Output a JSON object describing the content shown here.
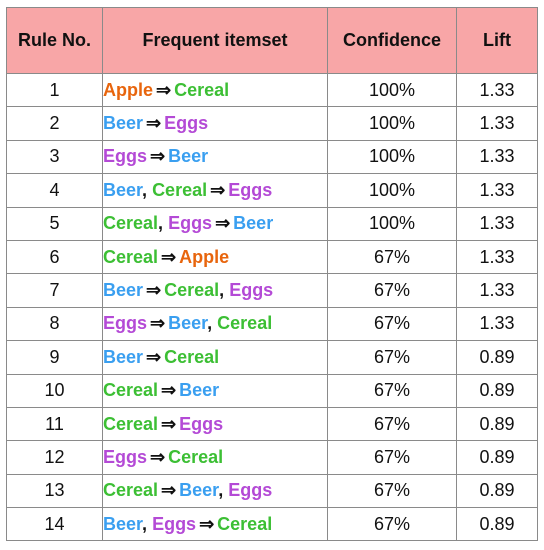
{
  "table": {
    "headers": [
      "Rule No.",
      "Frequent itemset",
      "Confidence",
      "Lift"
    ],
    "arrow": "⇒",
    "colors": {
      "Apple": "#e8650d",
      "Beer": "#3a9ff0",
      "Cereal": "#3cbf34",
      "Eggs": "#b44ad6",
      "header_bg": "#f8a6a7"
    },
    "rows": [
      {
        "num": "1",
        "lhs": [
          "Apple"
        ],
        "rhs": [
          "Cereal"
        ],
        "confidence": "100%",
        "lift": "1.33"
      },
      {
        "num": "2",
        "lhs": [
          "Beer"
        ],
        "rhs": [
          "Eggs"
        ],
        "confidence": "100%",
        "lift": "1.33"
      },
      {
        "num": "3",
        "lhs": [
          "Eggs"
        ],
        "rhs": [
          "Beer"
        ],
        "confidence": "100%",
        "lift": "1.33"
      },
      {
        "num": "4",
        "lhs": [
          "Beer",
          "Cereal"
        ],
        "rhs": [
          "Eggs"
        ],
        "confidence": "100%",
        "lift": "1.33"
      },
      {
        "num": "5",
        "lhs": [
          "Cereal",
          "Eggs"
        ],
        "rhs": [
          "Beer"
        ],
        "confidence": "100%",
        "lift": "1.33"
      },
      {
        "num": "6",
        "lhs": [
          "Cereal"
        ],
        "rhs": [
          "Apple"
        ],
        "confidence": "67%",
        "lift": "1.33"
      },
      {
        "num": "7",
        "lhs": [
          "Beer"
        ],
        "rhs": [
          "Cereal",
          "Eggs"
        ],
        "confidence": "67%",
        "lift": "1.33"
      },
      {
        "num": "8",
        "lhs": [
          "Eggs"
        ],
        "rhs": [
          "Beer",
          "Cereal"
        ],
        "confidence": "67%",
        "lift": "1.33"
      },
      {
        "num": "9",
        "lhs": [
          "Beer"
        ],
        "rhs": [
          "Cereal"
        ],
        "confidence": "67%",
        "lift": "0.89"
      },
      {
        "num": "10",
        "lhs": [
          "Cereal"
        ],
        "rhs": [
          "Beer"
        ],
        "confidence": "67%",
        "lift": "0.89"
      },
      {
        "num": "11",
        "lhs": [
          "Cereal"
        ],
        "rhs": [
          "Eggs"
        ],
        "confidence": "67%",
        "lift": "0.89"
      },
      {
        "num": "12",
        "lhs": [
          "Eggs"
        ],
        "rhs": [
          "Cereal"
        ],
        "confidence": "67%",
        "lift": "0.89"
      },
      {
        "num": "13",
        "lhs": [
          "Cereal"
        ],
        "rhs": [
          "Beer",
          "Eggs"
        ],
        "confidence": "67%",
        "lift": "0.89"
      },
      {
        "num": "14",
        "lhs": [
          "Beer",
          "Eggs"
        ],
        "rhs": [
          "Cereal"
        ],
        "confidence": "67%",
        "lift": "0.89"
      }
    ]
  }
}
